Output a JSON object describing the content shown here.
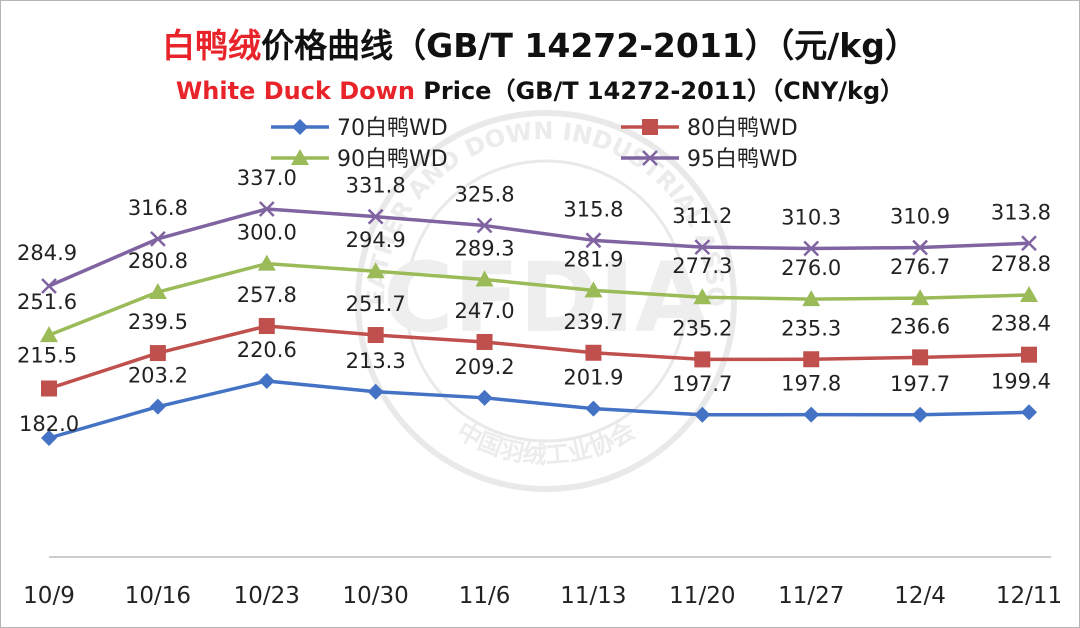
{
  "chart_data": {
    "type": "line",
    "title_red": "白鸭绒",
    "title_rest": "价格曲线（GB/T 14272-2011）（元/kg）",
    "subtitle_red": "White Duck Down",
    "subtitle_rest": " Price（GB/T 14272-2011）（CNY/kg）",
    "xlabel": "",
    "ylabel": "",
    "categories": [
      "10/9",
      "10/16",
      "10/23",
      "10/30",
      "11/6",
      "11/13",
      "11/20",
      "11/27",
      "12/4",
      "12/11"
    ],
    "ylim": [
      140,
      360
    ],
    "grid": false,
    "legend_position": "top",
    "series": [
      {
        "name": "70白鸭WD",
        "color": "#4472c4",
        "marker": "diamond",
        "values": [
          182.0,
          203.2,
          220.6,
          213.3,
          209.2,
          201.9,
          197.7,
          197.8,
          197.7,
          199.4
        ]
      },
      {
        "name": "80白鸭WD",
        "color": "#c0504d",
        "marker": "square",
        "values": [
          215.5,
          239.5,
          257.8,
          251.7,
          247.0,
          239.7,
          235.2,
          235.3,
          236.6,
          238.4
        ]
      },
      {
        "name": "90白鸭WD",
        "color": "#9bbb59",
        "marker": "triangle",
        "values": [
          251.6,
          280.8,
          300.0,
          294.9,
          289.3,
          281.9,
          277.3,
          276.0,
          276.7,
          278.8
        ]
      },
      {
        "name": "95白鸭WD",
        "color": "#8064a2",
        "marker": "x",
        "values": [
          284.9,
          316.8,
          337.0,
          331.8,
          325.8,
          315.8,
          311.2,
          310.3,
          310.9,
          313.8
        ]
      }
    ],
    "watermark": {
      "top_text": "CHINA FEATHER AND DOWN INDUSTRIAL ASSOCIATION",
      "bottom_text": "中国羽绒工业协会",
      "logo_text": "CFDIA"
    }
  }
}
